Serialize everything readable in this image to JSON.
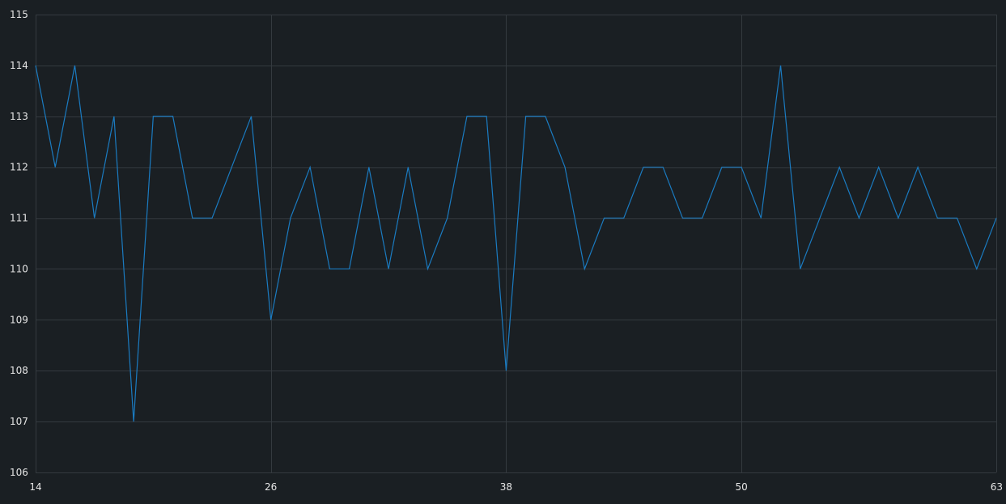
{
  "chart_data": {
    "type": "line",
    "title": "",
    "xlabel": "",
    "ylabel": "",
    "xlim": [
      14,
      63
    ],
    "ylim": [
      106,
      115
    ],
    "x_ticks": [
      14,
      26,
      38,
      50,
      63
    ],
    "y_ticks": [
      106,
      107,
      108,
      109,
      110,
      111,
      112,
      113,
      114,
      115
    ],
    "grid": true,
    "legend": "none",
    "colors": {
      "background": "#1a1f23",
      "grid": "#343a3f",
      "text": "#e6e6e6",
      "series": "#1a7bc1"
    },
    "series": [
      {
        "x": [
          14,
          15,
          16,
          17,
          18,
          19,
          20,
          21,
          22,
          23,
          24,
          25,
          26,
          27,
          28,
          29,
          30,
          31,
          32,
          33,
          34,
          35,
          36,
          37,
          38,
          39,
          40,
          41,
          42,
          43,
          44,
          45,
          46,
          47,
          48,
          49,
          50,
          51,
          52,
          53,
          54,
          55,
          56,
          57,
          58,
          59,
          60,
          61,
          62,
          63
        ],
        "values": [
          114,
          112,
          114,
          111,
          113,
          107,
          113,
          113,
          111,
          111,
          112,
          113,
          109,
          111,
          112,
          110,
          110,
          112,
          110,
          112,
          110,
          111,
          113,
          113,
          108,
          113,
          113,
          112,
          110,
          111,
          111,
          112,
          112,
          111,
          111,
          112,
          112,
          111,
          114,
          110,
          111,
          112,
          111,
          112,
          111,
          112,
          111,
          111,
          110,
          111
        ]
      }
    ]
  }
}
